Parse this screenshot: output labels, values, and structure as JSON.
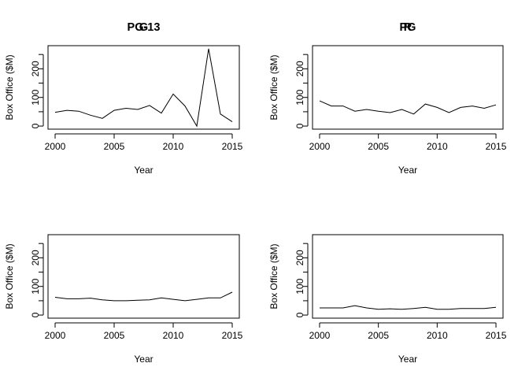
{
  "chart_data": [
    {
      "type": "line",
      "title": "G",
      "xlabel": "Year",
      "ylabel": "Box Office ($M)",
      "xlim": [
        1999.4,
        2015.6
      ],
      "ylim": [
        -10.8,
        280.8
      ],
      "xticks": [
        2000,
        2005,
        2010,
        2015
      ],
      "yticks": [
        0,
        100,
        200
      ],
      "ytick_marks": [
        0,
        50,
        100,
        150,
        200,
        250
      ],
      "grid": false,
      "x": [
        2000,
        2001,
        2002,
        2003,
        2004,
        2005,
        2006,
        2007,
        2008,
        2009,
        2010,
        2011,
        2012,
        2013,
        2014,
        2015
      ],
      "values": [
        48,
        55,
        52,
        38,
        27,
        55,
        62,
        58,
        72,
        45,
        112,
        70,
        0,
        270,
        42,
        15
      ]
    },
    {
      "type": "line",
      "title": "PG",
      "xlabel": "Year",
      "ylabel": "Box Office ($M)",
      "xlim": [
        1999.4,
        2015.6
      ],
      "ylim": [
        -10.8,
        280.8
      ],
      "xticks": [
        2000,
        2005,
        2010,
        2015
      ],
      "yticks": [
        0,
        100,
        200
      ],
      "ytick_marks": [
        0,
        50,
        100,
        150,
        200,
        250
      ],
      "grid": false,
      "x": [
        2000,
        2001,
        2002,
        2003,
        2004,
        2005,
        2006,
        2007,
        2008,
        2009,
        2010,
        2011,
        2012,
        2013,
        2014,
        2015
      ],
      "values": [
        88,
        70,
        70,
        52,
        58,
        52,
        47,
        58,
        42,
        77,
        65,
        47,
        65,
        70,
        62,
        74
      ]
    },
    {
      "type": "line",
      "title": "PG-13",
      "xlabel": "Year",
      "ylabel": "Box Office ($M)",
      "xlim": [
        1999.4,
        2015.6
      ],
      "ylim": [
        -10.8,
        280.8
      ],
      "xticks": [
        2000,
        2005,
        2010,
        2015
      ],
      "yticks": [
        0,
        100,
        200
      ],
      "ytick_marks": [
        0,
        50,
        100,
        150,
        200,
        250
      ],
      "grid": false,
      "x": [
        2000,
        2001,
        2002,
        2003,
        2004,
        2005,
        2006,
        2007,
        2008,
        2009,
        2010,
        2011,
        2012,
        2013,
        2014,
        2015
      ],
      "values": [
        62,
        57,
        57,
        59,
        53,
        50,
        50,
        52,
        53,
        60,
        55,
        50,
        55,
        60,
        60,
        80
      ]
    },
    {
      "type": "line",
      "title": "R",
      "xlabel": "Year",
      "ylabel": "Box Office ($M)",
      "xlim": [
        1999.4,
        2015.6
      ],
      "ylim": [
        -10.8,
        280.8
      ],
      "xticks": [
        2000,
        2005,
        2010,
        2015
      ],
      "yticks": [
        0,
        100,
        200
      ],
      "ytick_marks": [
        0,
        50,
        100,
        150,
        200,
        250
      ],
      "grid": false,
      "x": [
        2000,
        2001,
        2002,
        2003,
        2004,
        2005,
        2006,
        2007,
        2008,
        2009,
        2010,
        2011,
        2012,
        2013,
        2014,
        2015
      ],
      "values": [
        25,
        25,
        25,
        33,
        25,
        20,
        22,
        20,
        23,
        27,
        20,
        20,
        23,
        23,
        23,
        27
      ]
    }
  ]
}
